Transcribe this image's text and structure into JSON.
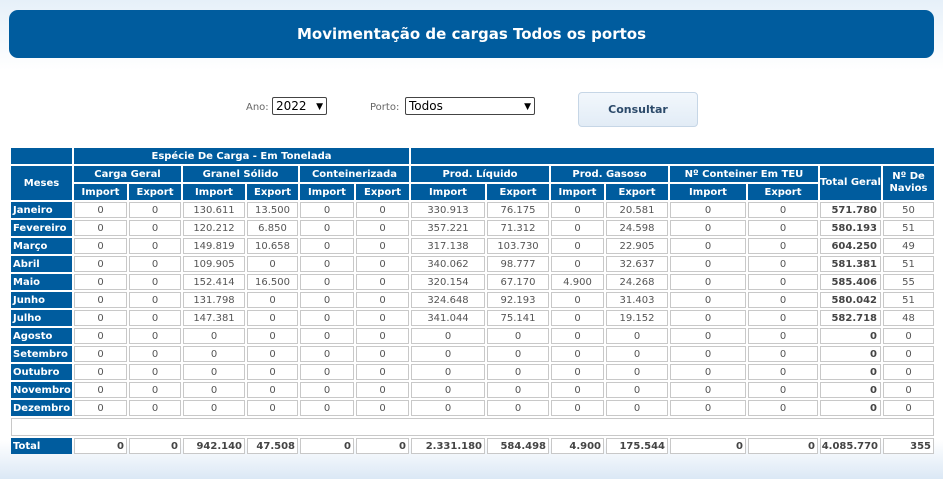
{
  "title": "Movimentação de cargas Todos os portos",
  "filters": {
    "ano_label": "Ano:",
    "ano_value": "2022",
    "porto_label": "Porto:",
    "porto_value": "Todos",
    "submit_label": "Consultar"
  },
  "table": {
    "group_header": "Espécie De Carga - Em Tonelada",
    "col_meses": "Meses",
    "cat": {
      "carga_geral": "Carga Geral",
      "granel_solido": "Granel Sólido",
      "conteinerizada": "Conteinerizada",
      "prod_liquido": "Prod. Líquido",
      "prod_gasoso": "Prod. Gasoso",
      "conteiner_teu": "Nº Conteiner Em TEU",
      "total_geral": "Total Geral",
      "navios": "Nº De Navios"
    },
    "sub": {
      "import": "Import",
      "export": "Export"
    },
    "rows": [
      {
        "month": "Janeiro",
        "v": [
          "0",
          "0",
          "130.611",
          "13.500",
          "0",
          "0",
          "330.913",
          "76.175",
          "0",
          "20.581",
          "0",
          "0",
          "571.780",
          "50"
        ]
      },
      {
        "month": "Fevereiro",
        "v": [
          "0",
          "0",
          "120.212",
          "6.850",
          "0",
          "0",
          "357.221",
          "71.312",
          "0",
          "24.598",
          "0",
          "0",
          "580.193",
          "51"
        ]
      },
      {
        "month": "Março",
        "v": [
          "0",
          "0",
          "149.819",
          "10.658",
          "0",
          "0",
          "317.138",
          "103.730",
          "0",
          "22.905",
          "0",
          "0",
          "604.250",
          "49"
        ]
      },
      {
        "month": "Abril",
        "v": [
          "0",
          "0",
          "109.905",
          "0",
          "0",
          "0",
          "340.062",
          "98.777",
          "0",
          "32.637",
          "0",
          "0",
          "581.381",
          "51"
        ]
      },
      {
        "month": "Maio",
        "v": [
          "0",
          "0",
          "152.414",
          "16.500",
          "0",
          "0",
          "320.154",
          "67.170",
          "4.900",
          "24.268",
          "0",
          "0",
          "585.406",
          "55"
        ]
      },
      {
        "month": "Junho",
        "v": [
          "0",
          "0",
          "131.798",
          "0",
          "0",
          "0",
          "324.648",
          "92.193",
          "0",
          "31.403",
          "0",
          "0",
          "580.042",
          "51"
        ]
      },
      {
        "month": "Julho",
        "v": [
          "0",
          "0",
          "147.381",
          "0",
          "0",
          "0",
          "341.044",
          "75.141",
          "0",
          "19.152",
          "0",
          "0",
          "582.718",
          "48"
        ]
      },
      {
        "month": "Agosto",
        "v": [
          "0",
          "0",
          "0",
          "0",
          "0",
          "0",
          "0",
          "0",
          "0",
          "0",
          "0",
          "0",
          "0",
          "0"
        ]
      },
      {
        "month": "Setembro",
        "v": [
          "0",
          "0",
          "0",
          "0",
          "0",
          "0",
          "0",
          "0",
          "0",
          "0",
          "0",
          "0",
          "0",
          "0"
        ]
      },
      {
        "month": "Outubro",
        "v": [
          "0",
          "0",
          "0",
          "0",
          "0",
          "0",
          "0",
          "0",
          "0",
          "0",
          "0",
          "0",
          "0",
          "0"
        ]
      },
      {
        "month": "Novembro",
        "v": [
          "0",
          "0",
          "0",
          "0",
          "0",
          "0",
          "0",
          "0",
          "0",
          "0",
          "0",
          "0",
          "0",
          "0"
        ]
      },
      {
        "month": "Dezembro",
        "v": [
          "0",
          "0",
          "0",
          "0",
          "0",
          "0",
          "0",
          "0",
          "0",
          "0",
          "0",
          "0",
          "0",
          "0"
        ]
      }
    ],
    "total": {
      "label": "Total",
      "v": [
        "0",
        "0",
        "942.140",
        "47.508",
        "0",
        "0",
        "2.331.180",
        "584.498",
        "4.900",
        "175.544",
        "0",
        "0",
        "4.085.770",
        "355"
      ]
    }
  }
}
